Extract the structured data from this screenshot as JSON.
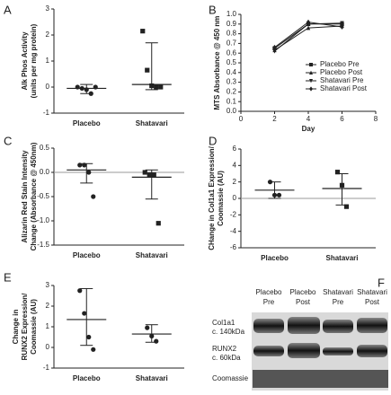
{
  "chart_data": [
    {
      "type": "dot",
      "panel": "A",
      "ylabel": [
        "Alk Phos Activity",
        "(units per mg protein)"
      ],
      "ylim": [
        -1,
        3
      ],
      "yticks": [
        -1,
        0,
        1,
        2,
        3
      ],
      "series": [
        {
          "name": "Placebo",
          "marker": "circle",
          "color": "#222222",
          "values": [
            0.0,
            -0.05,
            -0.1,
            -0.25,
            0.0
          ],
          "center": -0.05,
          "lower": -0.25,
          "upper": 0.1
        },
        {
          "name": "Shatavari",
          "marker": "square",
          "color": "#222222",
          "values": [
            2.15,
            0.65,
            0.05,
            0.0,
            0.0
          ],
          "center": 0.1,
          "lower": -0.1,
          "upper": 1.7
        }
      ]
    },
    {
      "type": "line",
      "panel": "B",
      "ylabel": [
        "MTS Absorbance @ 450 nm"
      ],
      "xlabel": "Day",
      "x": [
        2,
        4,
        6
      ],
      "xlim": [
        0,
        8
      ],
      "xticks": [
        0,
        2,
        4,
        6,
        8
      ],
      "ylim": [
        0,
        1
      ],
      "yticks": [
        {
          "value": 0,
          "label": "0.0"
        },
        0.1,
        0.2,
        0.3,
        0.4,
        0.5,
        0.6,
        0.7,
        0.8,
        0.9,
        {
          "value": 1,
          "label": "1.0"
        }
      ],
      "legend": "lower right",
      "series": [
        {
          "name": "Placebo Pre",
          "marker": "square",
          "color": "#222222",
          "values": [
            0.65,
            0.9,
            0.9
          ]
        },
        {
          "name": "Placebo Post",
          "marker": "triangle-up",
          "color": "#222222",
          "values": [
            0.63,
            0.86,
            0.88
          ]
        },
        {
          "name": "Shatavari Pre",
          "marker": "triangle-down",
          "color": "#222222",
          "values": [
            0.62,
            0.9,
            0.91
          ]
        },
        {
          "name": "Shatavari Post",
          "marker": "diamond",
          "color": "#222222",
          "values": [
            0.66,
            0.92,
            0.87
          ]
        }
      ]
    },
    {
      "type": "dot",
      "panel": "C",
      "ylabel": [
        "Alizarin Red Stain Intensity",
        "Change (Absorbance @ 450nm)"
      ],
      "ylim": [
        -1.5,
        0.5
      ],
      "yticks": [
        -1.5,
        {
          "value": -1,
          "label": "-1.0"
        },
        -0.5,
        {
          "value": 0,
          "label": "0.0"
        },
        0.5
      ],
      "zero_line": true,
      "series": [
        {
          "name": "Placebo",
          "marker": "circle",
          "color": "#222222",
          "values": [
            0.15,
            0.15,
            0.0,
            -0.5
          ],
          "center": 0.05,
          "lower": -0.22,
          "upper": 0.18
        },
        {
          "name": "Shatavari",
          "marker": "square",
          "color": "#222222",
          "values": [
            0.0,
            -0.05,
            -0.05,
            -1.05
          ],
          "center": -0.1,
          "lower": -0.55,
          "upper": 0.05
        }
      ]
    },
    {
      "type": "dot",
      "panel": "D",
      "ylabel": [
        "CHange in Col1a1 Expression/",
        "Coomassie (AU)"
      ],
      "ylim": [
        -6,
        6
      ],
      "yticks": [
        -6,
        -4,
        -2,
        0,
        2,
        4,
        6
      ],
      "zero_line": true,
      "series": [
        {
          "name": "Placebo",
          "marker": "circle",
          "color": "#222222",
          "values": [
            2.0,
            0.4,
            0.4
          ],
          "center": 1.0,
          "lower": 0.0,
          "upper": 2.0
        },
        {
          "name": "Shatavari",
          "marker": "square",
          "color": "#222222",
          "values": [
            3.2,
            1.6,
            -1.0
          ],
          "center": 1.2,
          "lower": -0.8,
          "upper": 3.0
        }
      ]
    },
    {
      "type": "dot",
      "panel": "E",
      "ylabel": [
        "Change in",
        "RUNX2 Expression/",
        "Coomassie (AU)"
      ],
      "ylim": [
        -1,
        3
      ],
      "yticks": [
        -1,
        0,
        1,
        2,
        3
      ],
      "series": [
        {
          "name": "Placebo",
          "marker": "circle",
          "color": "#222222",
          "values": [
            2.75,
            1.65,
            0.5,
            -0.1
          ],
          "center": 1.35,
          "lower": 0.1,
          "upper": 2.85
        },
        {
          "name": "Shatavari",
          "marker": "circle",
          "color": "#222222",
          "values": [
            0.95,
            0.55,
            0.3
          ],
          "center": 0.65,
          "lower": 0.25,
          "upper": 1.1
        }
      ]
    }
  ],
  "blot": {
    "panel": "F",
    "lanes": [
      [
        "Placebo",
        "Pre"
      ],
      [
        "Placebo",
        "Post"
      ],
      [
        "Shatavari",
        "Pre"
      ],
      [
        "Shatavari",
        "Post"
      ]
    ],
    "rows": [
      [
        "Col1a1",
        "c. 140kDa"
      ],
      [
        "RUNX2",
        "c. 60kDa"
      ],
      [
        "Coomassie"
      ]
    ]
  }
}
